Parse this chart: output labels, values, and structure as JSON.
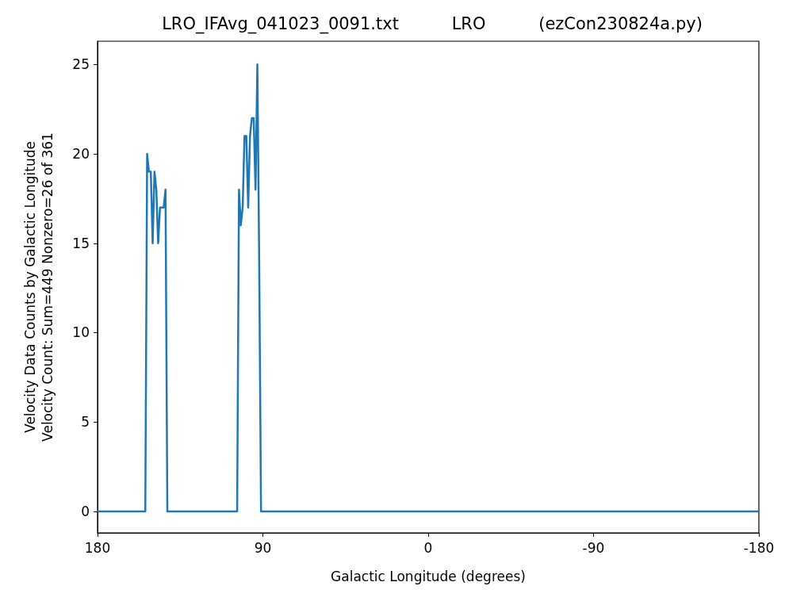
{
  "chart_data": {
    "type": "line",
    "title": "LRO_IFAvg_041023_0091.txt          LRO          (ezCon230824a.py)",
    "xlabel": "Galactic Longitude (degrees)",
    "ylabel": "Velocity Data Counts by Galactic Longitude\nVelocity Count: Sum=449 Nonzero=26 of 361",
    "series": [
      {
        "color": "#1f77b4",
        "x": [
          180,
          154,
          153,
          152,
          151,
          150,
          149,
          148,
          147,
          146,
          145,
          144,
          143,
          142,
          104,
          103,
          102,
          101,
          100,
          99,
          98,
          97,
          96,
          95,
          94,
          93,
          92,
          91,
          -180
        ],
        "values": [
          0,
          0,
          20,
          19,
          19,
          15,
          19,
          18,
          15,
          17,
          17,
          17,
          18,
          0,
          0,
          18,
          16,
          17,
          21,
          21,
          17,
          21,
          22,
          22,
          18,
          25,
          14,
          0,
          0
        ]
      }
    ],
    "xlim": [
      180,
      -180
    ],
    "xticks": [
      180,
      90,
      0,
      -90,
      -180
    ],
    "ylim": [
      -1.2,
      26.3
    ],
    "yticks": [
      0,
      5,
      10,
      15,
      20,
      25
    ],
    "grid": false,
    "marker": "none",
    "line_style": "solid"
  }
}
